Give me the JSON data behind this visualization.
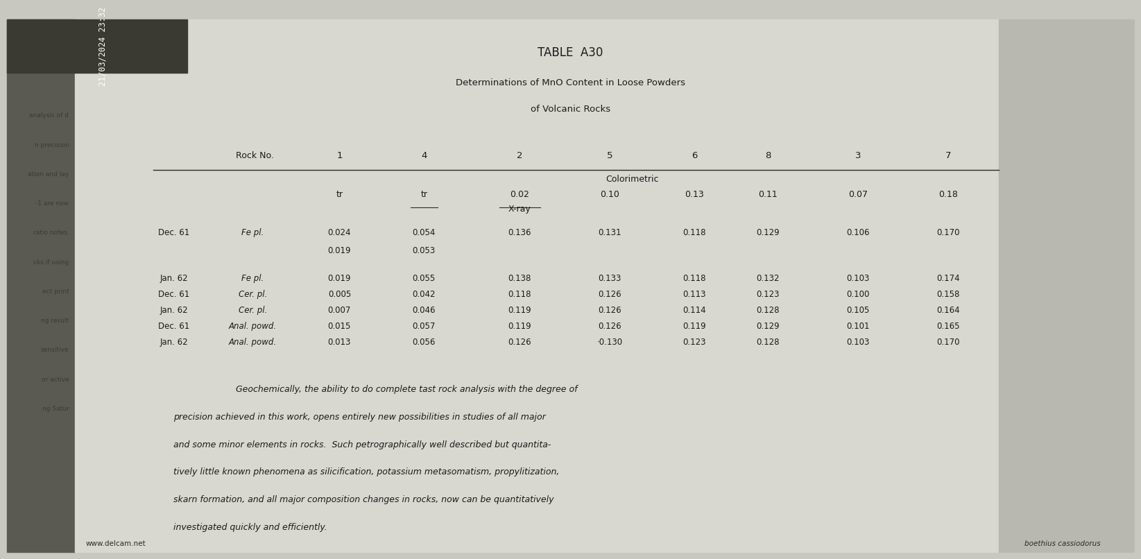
{
  "title": "TABLE  A30",
  "subtitle1": "Determinations of MnO Content in Loose Powders",
  "subtitle2": "of Volcanic Rocks",
  "bg_color": "#c8c8c0",
  "page_bg": "#d8d8d0",
  "text_color": "#1a1a1a",
  "datetime_stamp": "21/03/2024 23:32",
  "watermark": "www.delcam.net",
  "footer": "boethius cassiodorus",
  "rock_no_label": "Rock No.",
  "rock_nos": [
    "1",
    "4",
    "2",
    "5",
    "6",
    "8",
    "3",
    "7"
  ],
  "colorimetric_label": "Colorimetric",
  "colorimetric_row": [
    "tr",
    "tr",
    "0.02",
    "0.10",
    "0.13",
    "0.11",
    "0.07",
    "0.18"
  ],
  "xray_label": "X-ray",
  "left_texts": [
    "analysis of d",
    "n precision",
    "ation and lay",
    "-1 are now",
    "ratio notes.",
    "cks if using",
    "ect print",
    "ng result",
    "sensitive",
    "or active",
    "ng Satur"
  ],
  "para_lines": [
    "Geochemically, the ability to do complete tast rock analysis with the degree of",
    "precision achieved in this work, opens entirely new possibilities in studies of all major",
    "and some minor elements in rocks.  Such petrographically well described but quantita-",
    "tively little known phenomena as silicification, potassium metasomatism, propylitization,",
    "skarn formation, and all major composition changes in rocks, now can be quantitatively",
    "investigated quickly and efficiently."
  ]
}
